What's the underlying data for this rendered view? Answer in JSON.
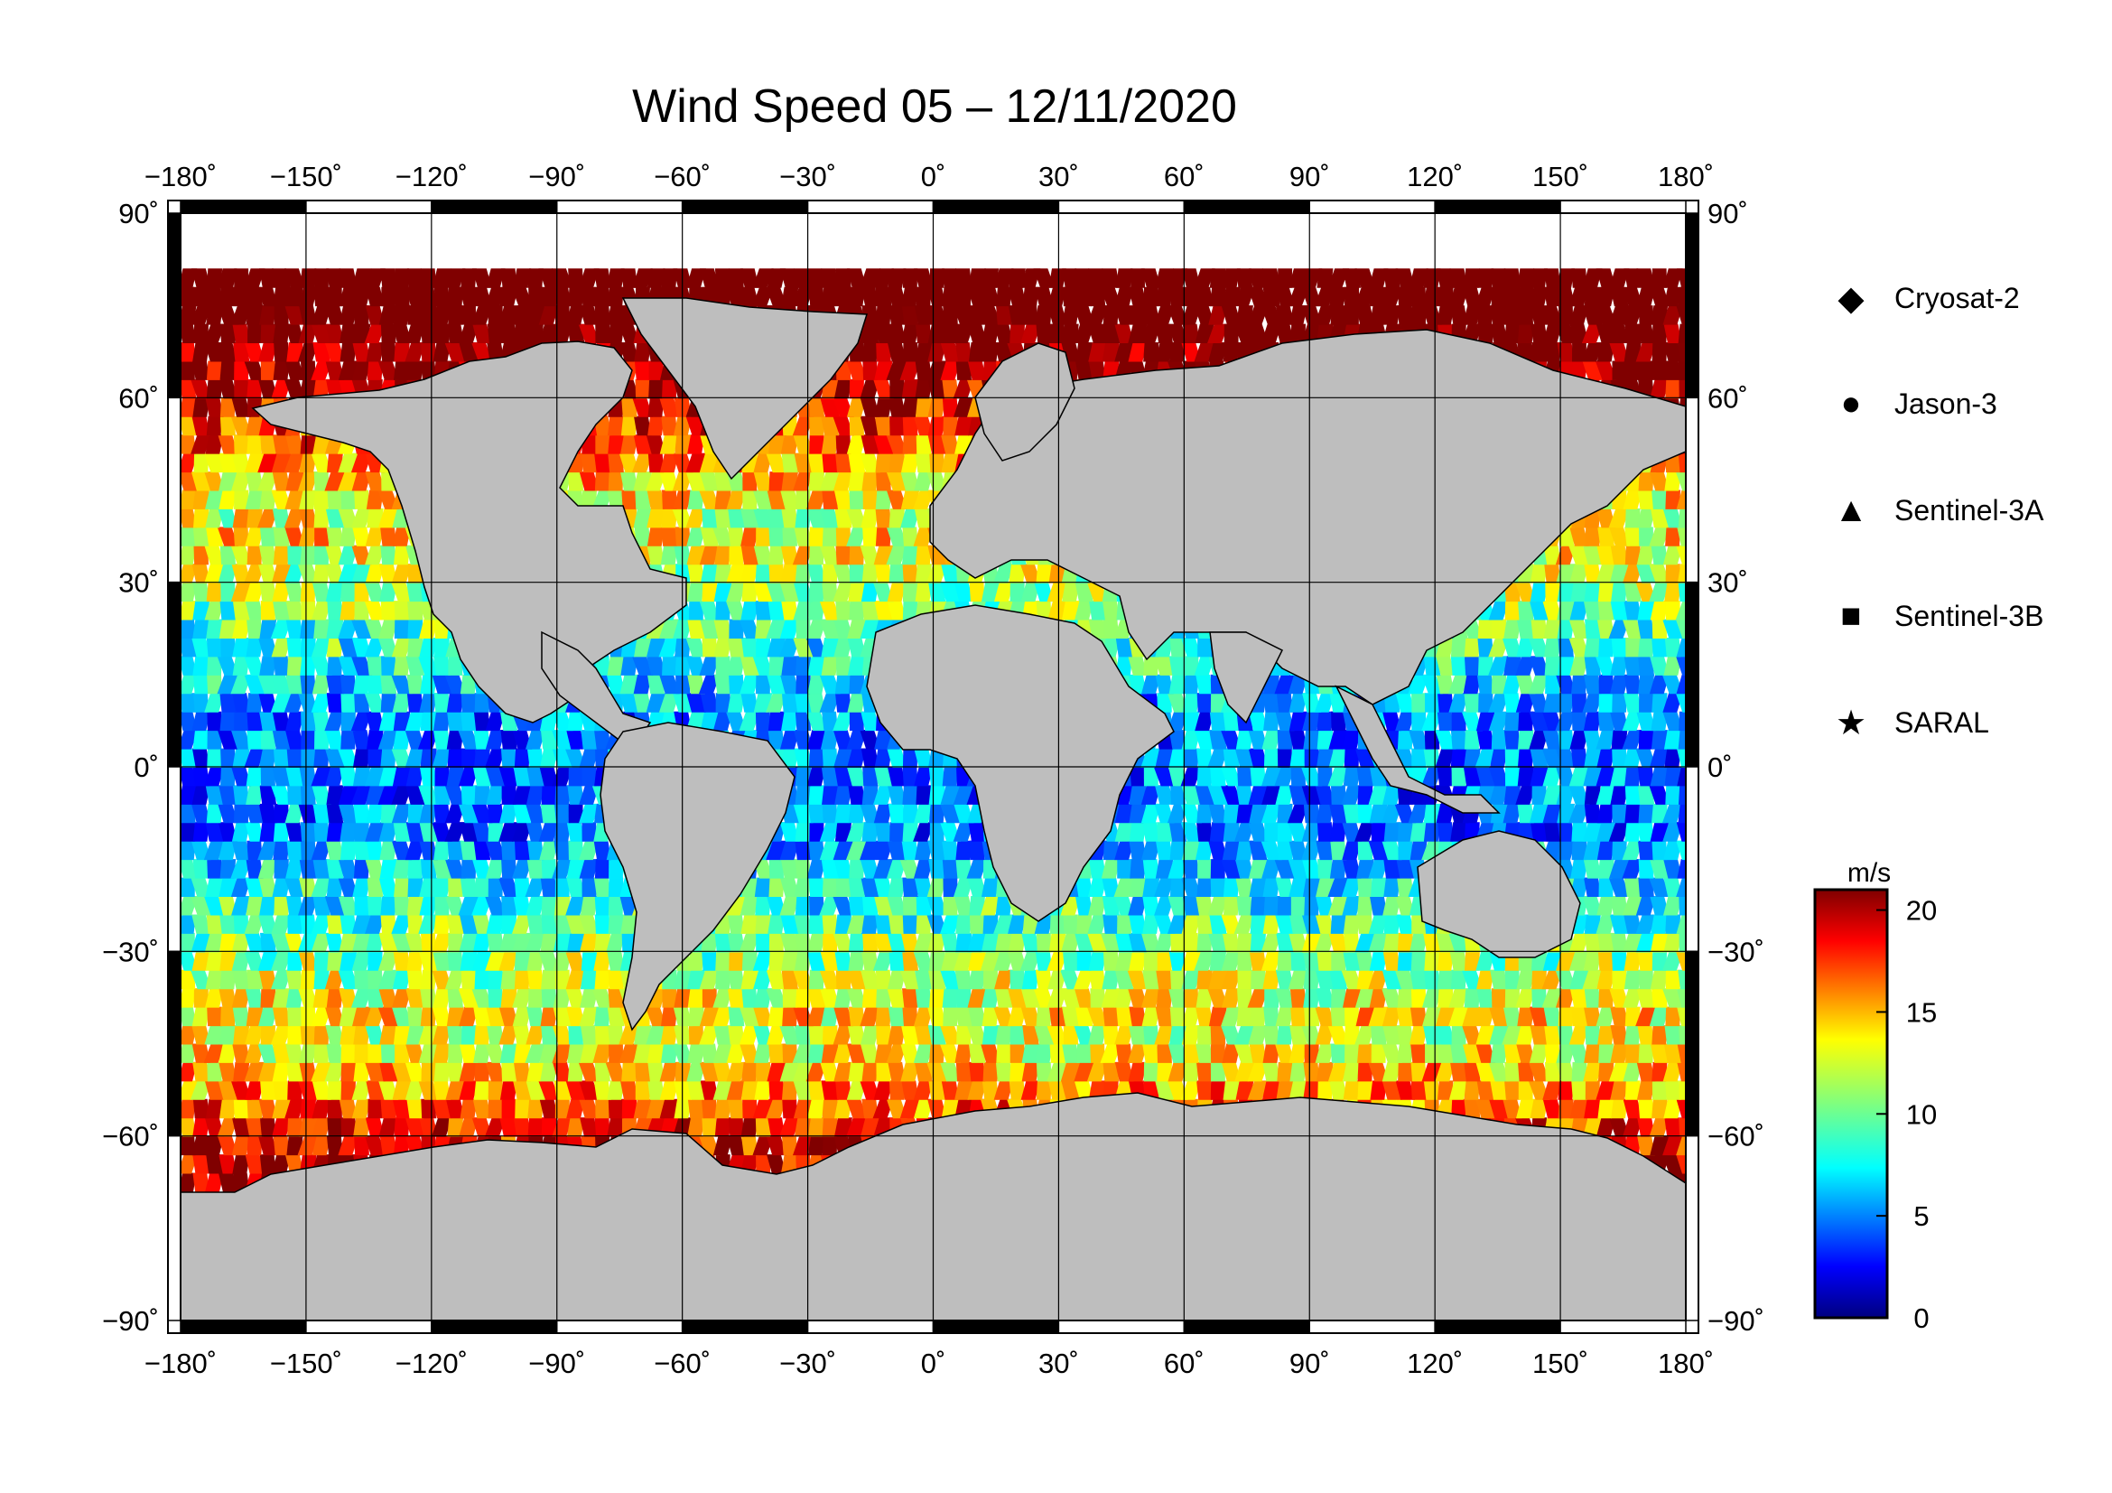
{
  "title": "Wind Speed 05 – 12/11/2020",
  "map": {
    "projection": "equirectangular",
    "lon_range": [
      -180,
      180
    ],
    "lat_range": [
      -90,
      90
    ],
    "lon_ticks": [
      "−180˚",
      "−150˚",
      "−120˚",
      "−90˚",
      "−60˚",
      "−30˚",
      "0˚",
      "30˚",
      "60˚",
      "90˚",
      "120˚",
      "150˚",
      "180˚"
    ],
    "lat_ticks_left": [
      "90˚",
      "60˚",
      "30˚",
      "0˚",
      "−30˚",
      "−60˚",
      "−90˚"
    ],
    "lat_ticks_right": [
      "90˚",
      "60˚",
      "30˚",
      "0˚",
      "−30˚",
      "−60˚",
      "−90˚"
    ],
    "land_color": "#bebebe",
    "ice_color": "#ffffff",
    "grid": true
  },
  "legend": {
    "items": [
      {
        "label": "Cryosat-2",
        "symbol": "diamond"
      },
      {
        "label": "Jason-3",
        "symbol": "circle"
      },
      {
        "label": "Sentinel-3A",
        "symbol": "triangle"
      },
      {
        "label": "Sentinel-3B",
        "symbol": "square"
      },
      {
        "label": "SARAL",
        "symbol": "star"
      }
    ]
  },
  "colorbar": {
    "unit": "m/s",
    "range": [
      0,
      21
    ],
    "ticks": [
      "20",
      "15",
      "10",
      "5",
      "0"
    ],
    "colormap": "jet"
  }
}
